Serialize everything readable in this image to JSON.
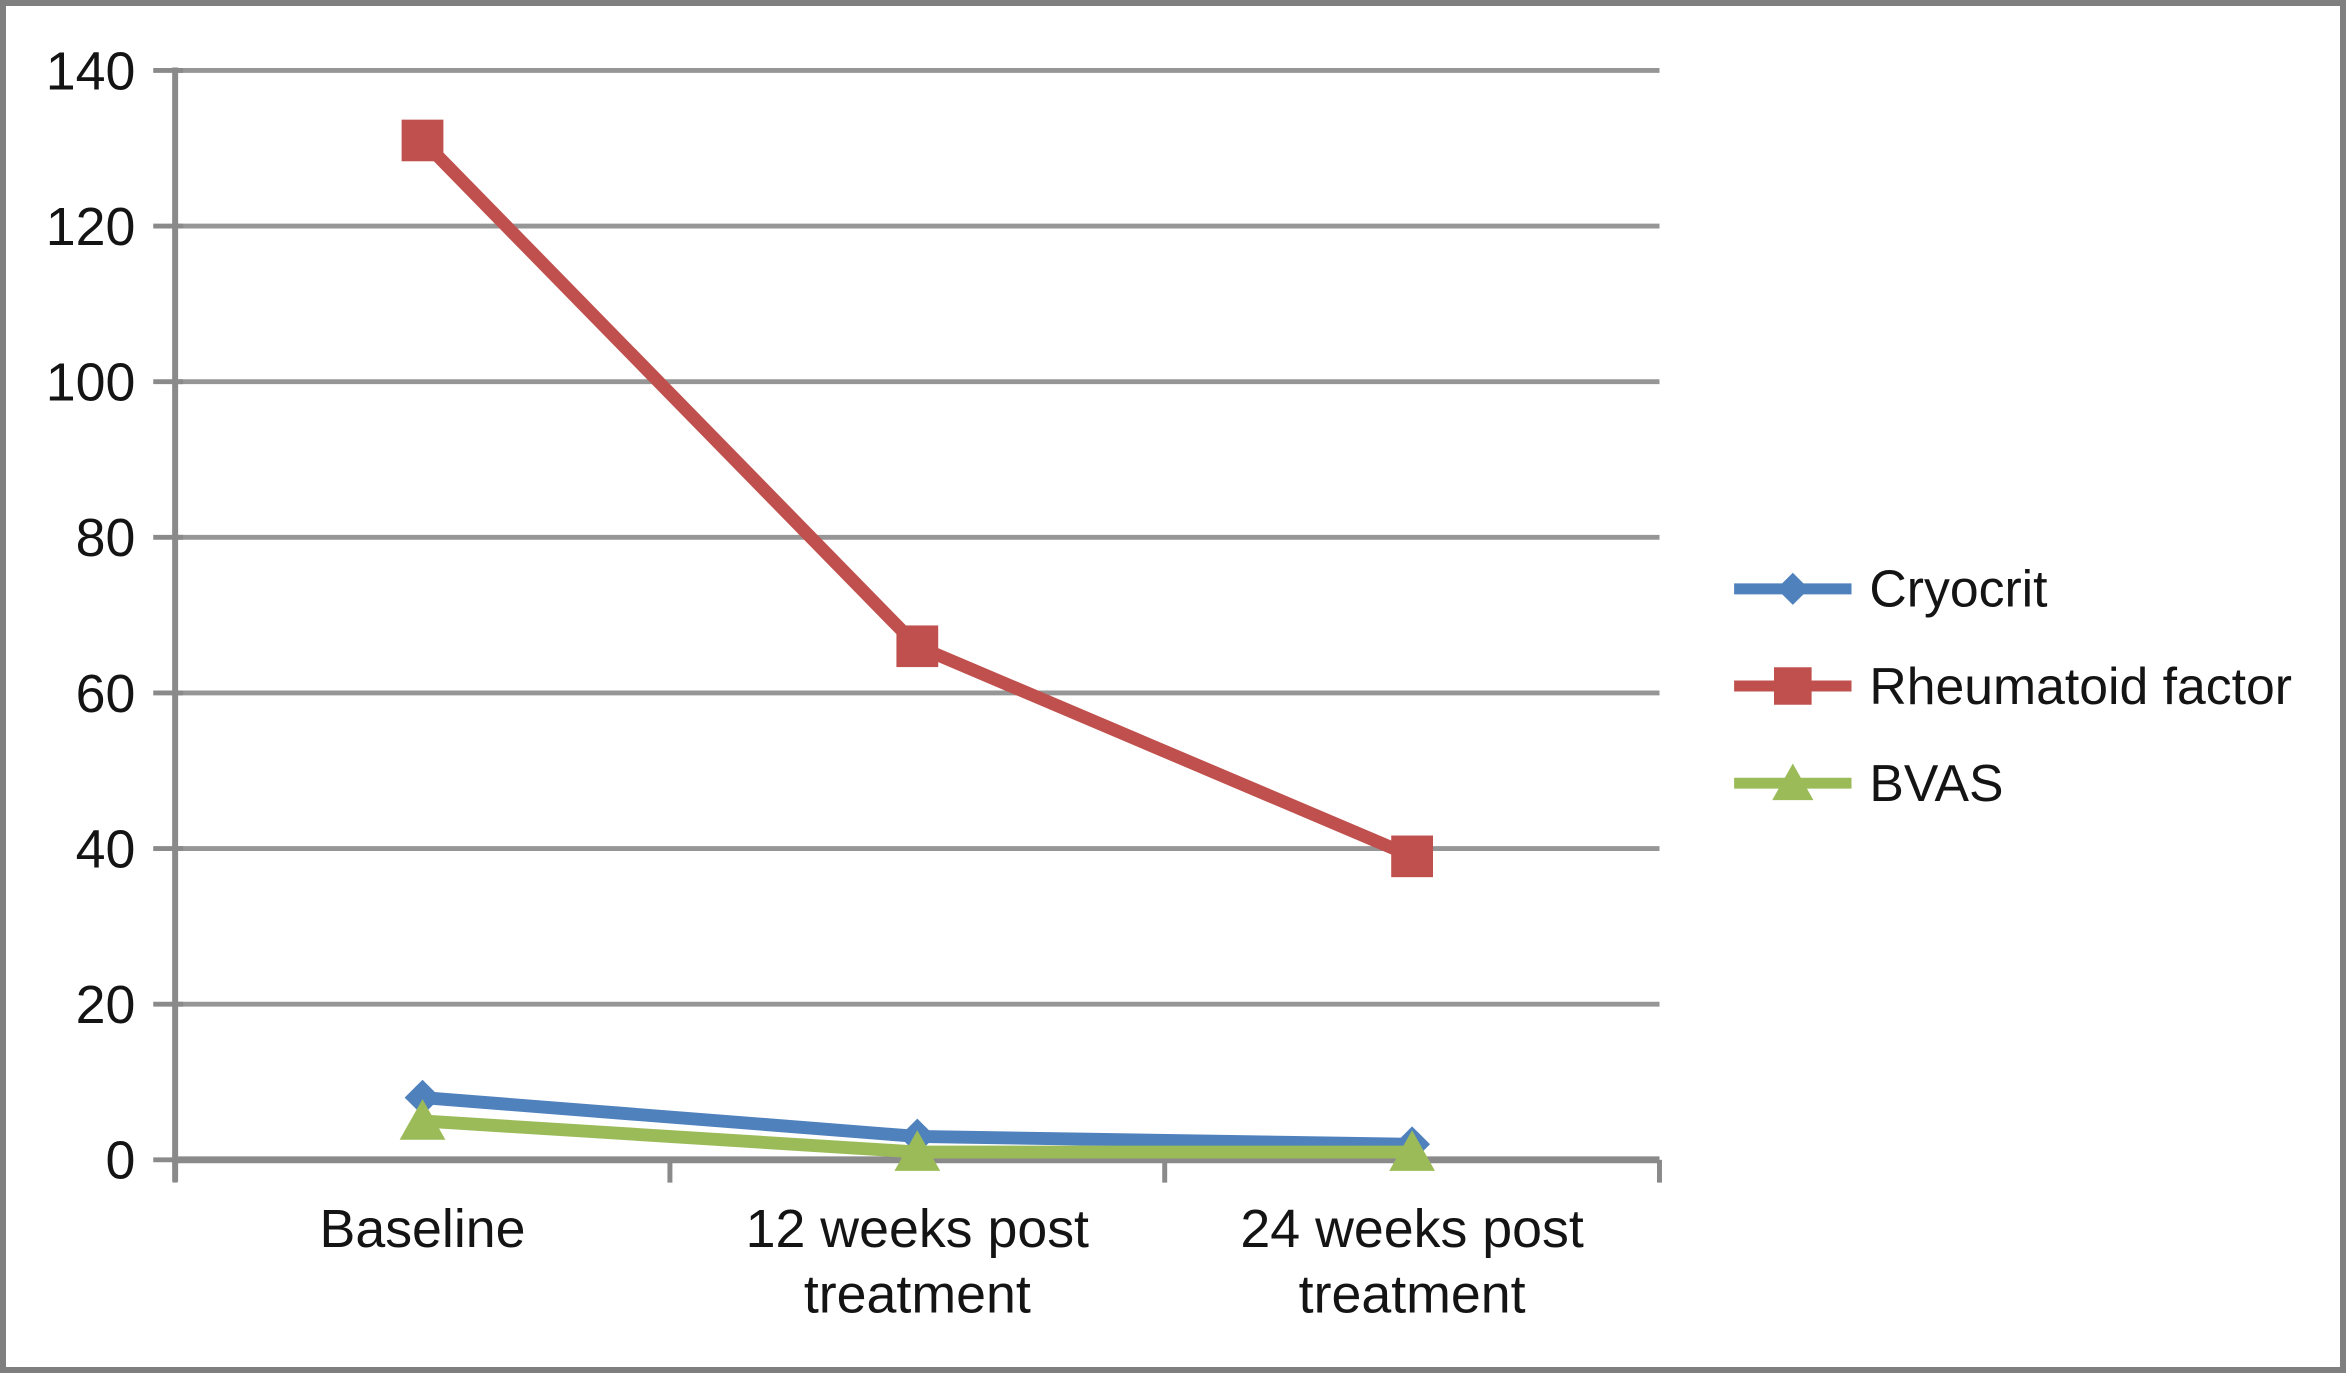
{
  "figure": {
    "background": "#FFFFFF",
    "border_color": "#7F7F7F"
  },
  "chart_data": {
    "type": "line",
    "title": "",
    "xlabel": "",
    "ylabel": "",
    "categories": [
      "Baseline",
      "12 weeks post\ntreatment",
      "24 weeks post\ntreatment"
    ],
    "series": [
      {
        "name": "Cryocrit",
        "color": "#4F81BD",
        "marker": "diamond",
        "values": [
          8,
          3,
          2
        ]
      },
      {
        "name": "Rheumatoid factor",
        "color": "#C0504D",
        "marker": "square",
        "values": [
          131,
          66,
          39
        ]
      },
      {
        "name": "BVAS",
        "color": "#9BBB59",
        "marker": "triangle",
        "values": [
          5,
          1,
          1
        ]
      }
    ],
    "ylim": [
      0,
      140
    ],
    "ytick_step": 20,
    "ytick_labels": [
      "0",
      "20",
      "40",
      "60",
      "80",
      "100",
      "120",
      "140"
    ],
    "grid": true,
    "gridline_color": "#969696",
    "axis_color": "#8A8A8A",
    "text_color": "#141414",
    "legend_position": "right"
  }
}
